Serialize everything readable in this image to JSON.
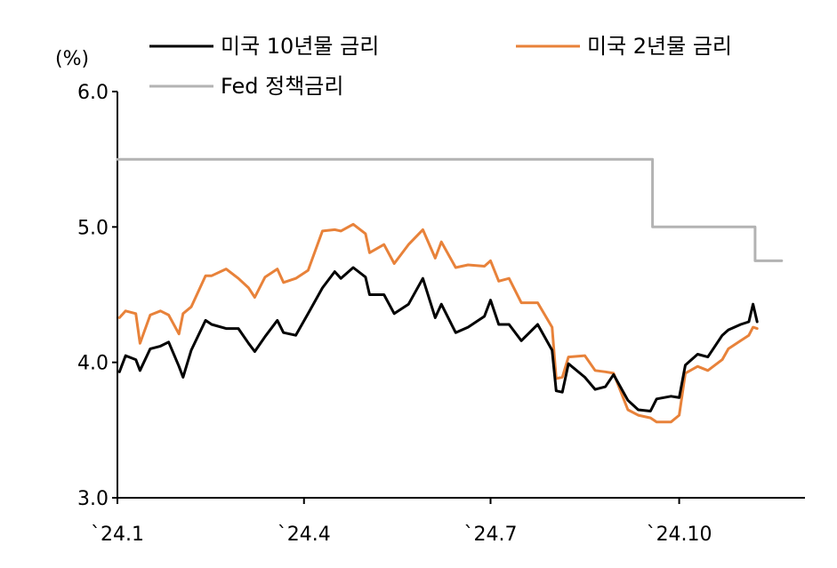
{
  "chart_data": {
    "type": "line",
    "unit_label": "(%)",
    "ylim": [
      3.0,
      6.0
    ],
    "y_ticks": [
      "3.0",
      "4.0",
      "5.0",
      "6.0"
    ],
    "x_ticks": [
      "`24.1",
      "`24.4",
      "`24.7",
      "`24.10"
    ],
    "legend": [
      "미국 10년물 금리",
      "미국 2년물 금리",
      "Fed 정책금리"
    ],
    "colors": {
      "us10y": "#000000",
      "us2y": "#E8823A",
      "fed": "#B3B3B3"
    },
    "series": [
      {
        "name": "미국 10년물 금리",
        "key": "us10y",
        "points": [
          [
            "2024-01-02",
            3.93
          ],
          [
            "2024-01-05",
            4.05
          ],
          [
            "2024-01-10",
            4.02
          ],
          [
            "2024-01-12",
            3.94
          ],
          [
            "2024-01-17",
            4.1
          ],
          [
            "2024-01-22",
            4.12
          ],
          [
            "2024-01-26",
            4.15
          ],
          [
            "2024-01-31",
            3.97
          ],
          [
            "2024-02-02",
            3.89
          ],
          [
            "2024-02-06",
            4.09
          ],
          [
            "2024-02-13",
            4.31
          ],
          [
            "2024-02-16",
            4.28
          ],
          [
            "2024-02-23",
            4.25
          ],
          [
            "2024-02-29",
            4.25
          ],
          [
            "2024-03-05",
            4.14
          ],
          [
            "2024-03-08",
            4.08
          ],
          [
            "2024-03-13",
            4.19
          ],
          [
            "2024-03-19",
            4.31
          ],
          [
            "2024-03-22",
            4.22
          ],
          [
            "2024-03-28",
            4.2
          ],
          [
            "2024-04-03",
            4.36
          ],
          [
            "2024-04-10",
            4.55
          ],
          [
            "2024-04-16",
            4.67
          ],
          [
            "2024-04-19",
            4.62
          ],
          [
            "2024-04-25",
            4.7
          ],
          [
            "2024-05-01",
            4.63
          ],
          [
            "2024-05-03",
            4.5
          ],
          [
            "2024-05-10",
            4.5
          ],
          [
            "2024-05-15",
            4.36
          ],
          [
            "2024-05-22",
            4.43
          ],
          [
            "2024-05-29",
            4.62
          ],
          [
            "2024-06-04",
            4.33
          ],
          [
            "2024-06-07",
            4.43
          ],
          [
            "2024-06-14",
            4.22
          ],
          [
            "2024-06-20",
            4.26
          ],
          [
            "2024-06-28",
            4.34
          ],
          [
            "2024-07-01",
            4.46
          ],
          [
            "2024-07-05",
            4.28
          ],
          [
            "2024-07-10",
            4.28
          ],
          [
            "2024-07-16",
            4.16
          ],
          [
            "2024-07-24",
            4.28
          ],
          [
            "2024-07-31",
            4.09
          ],
          [
            "2024-08-02",
            3.79
          ],
          [
            "2024-08-05",
            3.78
          ],
          [
            "2024-08-08",
            3.99
          ],
          [
            "2024-08-16",
            3.89
          ],
          [
            "2024-08-21",
            3.8
          ],
          [
            "2024-08-26",
            3.82
          ],
          [
            "2024-08-30",
            3.91
          ],
          [
            "2024-09-06",
            3.72
          ],
          [
            "2024-09-11",
            3.65
          ],
          [
            "2024-09-17",
            3.64
          ],
          [
            "2024-09-20",
            3.73
          ],
          [
            "2024-09-27",
            3.75
          ],
          [
            "2024-10-01",
            3.74
          ],
          [
            "2024-10-04",
            3.98
          ],
          [
            "2024-10-10",
            4.06
          ],
          [
            "2024-10-15",
            4.04
          ],
          [
            "2024-10-22",
            4.2
          ],
          [
            "2024-10-25",
            4.24
          ],
          [
            "2024-10-31",
            4.28
          ],
          [
            "2024-11-04",
            4.3
          ],
          [
            "2024-11-06",
            4.43
          ],
          [
            "2024-11-08",
            4.3
          ]
        ]
      },
      {
        "name": "미국 2년물 금리",
        "key": "us2y",
        "points": [
          [
            "2024-01-02",
            4.33
          ],
          [
            "2024-01-05",
            4.38
          ],
          [
            "2024-01-10",
            4.36
          ],
          [
            "2024-01-12",
            4.14
          ],
          [
            "2024-01-17",
            4.35
          ],
          [
            "2024-01-22",
            4.38
          ],
          [
            "2024-01-26",
            4.35
          ],
          [
            "2024-01-31",
            4.21
          ],
          [
            "2024-02-02",
            4.36
          ],
          [
            "2024-02-06",
            4.41
          ],
          [
            "2024-02-13",
            4.64
          ],
          [
            "2024-02-16",
            4.64
          ],
          [
            "2024-02-23",
            4.69
          ],
          [
            "2024-02-29",
            4.62
          ],
          [
            "2024-03-05",
            4.55
          ],
          [
            "2024-03-08",
            4.48
          ],
          [
            "2024-03-13",
            4.63
          ],
          [
            "2024-03-19",
            4.69
          ],
          [
            "2024-03-22",
            4.59
          ],
          [
            "2024-03-28",
            4.62
          ],
          [
            "2024-04-03",
            4.68
          ],
          [
            "2024-04-10",
            4.97
          ],
          [
            "2024-04-16",
            4.98
          ],
          [
            "2024-04-19",
            4.97
          ],
          [
            "2024-04-25",
            5.02
          ],
          [
            "2024-05-01",
            4.95
          ],
          [
            "2024-05-03",
            4.81
          ],
          [
            "2024-05-10",
            4.87
          ],
          [
            "2024-05-15",
            4.73
          ],
          [
            "2024-05-22",
            4.87
          ],
          [
            "2024-05-29",
            4.98
          ],
          [
            "2024-06-04",
            4.77
          ],
          [
            "2024-06-07",
            4.89
          ],
          [
            "2024-06-14",
            4.7
          ],
          [
            "2024-06-20",
            4.72
          ],
          [
            "2024-06-28",
            4.71
          ],
          [
            "2024-07-01",
            4.75
          ],
          [
            "2024-07-05",
            4.6
          ],
          [
            "2024-07-10",
            4.62
          ],
          [
            "2024-07-16",
            4.44
          ],
          [
            "2024-07-24",
            4.44
          ],
          [
            "2024-07-31",
            4.26
          ],
          [
            "2024-08-02",
            3.88
          ],
          [
            "2024-08-05",
            3.89
          ],
          [
            "2024-08-08",
            4.04
          ],
          [
            "2024-08-16",
            4.05
          ],
          [
            "2024-08-21",
            3.94
          ],
          [
            "2024-08-26",
            3.93
          ],
          [
            "2024-08-30",
            3.92
          ],
          [
            "2024-09-06",
            3.65
          ],
          [
            "2024-09-11",
            3.61
          ],
          [
            "2024-09-17",
            3.59
          ],
          [
            "2024-09-20",
            3.56
          ],
          [
            "2024-09-27",
            3.56
          ],
          [
            "2024-10-01",
            3.61
          ],
          [
            "2024-10-04",
            3.92
          ],
          [
            "2024-10-10",
            3.97
          ],
          [
            "2024-10-15",
            3.94
          ],
          [
            "2024-10-22",
            4.02
          ],
          [
            "2024-10-25",
            4.1
          ],
          [
            "2024-10-31",
            4.16
          ],
          [
            "2024-11-04",
            4.2
          ],
          [
            "2024-11-06",
            4.26
          ],
          [
            "2024-11-08",
            4.25
          ]
        ]
      },
      {
        "name": "Fed 정책금리",
        "key": "fed",
        "points": [
          [
            "2024-01-01",
            5.5
          ],
          [
            "2024-09-18",
            5.5
          ],
          [
            "2024-09-18",
            5.0
          ],
          [
            "2024-11-07",
            5.0
          ],
          [
            "2024-11-07",
            4.75
          ],
          [
            "2024-11-20",
            4.75
          ]
        ]
      }
    ]
  }
}
